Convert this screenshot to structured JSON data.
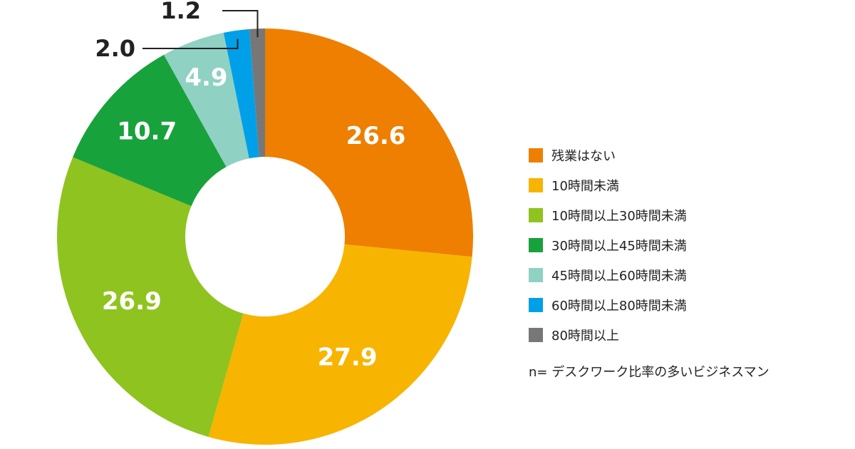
{
  "chart_data": {
    "type": "pie",
    "donut": true,
    "legend_position": "right",
    "slices": [
      {
        "label": "残業はない",
        "value": 26.6,
        "value_label": "26.6",
        "color": "#ee7f00"
      },
      {
        "label": "10時間未満",
        "value": 27.9,
        "value_label": "27.9",
        "color": "#f7b400"
      },
      {
        "label": "10時間以上30時間未満",
        "value": 26.9,
        "value_label": "26.9",
        "color": "#8fc31f"
      },
      {
        "label": "30時間以上45時間未満",
        "value": 10.7,
        "value_label": "10.7",
        "color": "#18a23b"
      },
      {
        "label": "45時間以上60時間未満",
        "value": 4.9,
        "value_label": "4.9",
        "color": "#8fd1c3"
      },
      {
        "label": "60時間以上80時間未満",
        "value": 2.0,
        "value_label": "2.0",
        "color": "#00a0e9"
      },
      {
        "label": "80時間以上",
        "value": 1.2,
        "value_label": "1.2",
        "color": "#777777"
      }
    ],
    "note": "n= デスクワーク比率の多いビジネスマン"
  }
}
